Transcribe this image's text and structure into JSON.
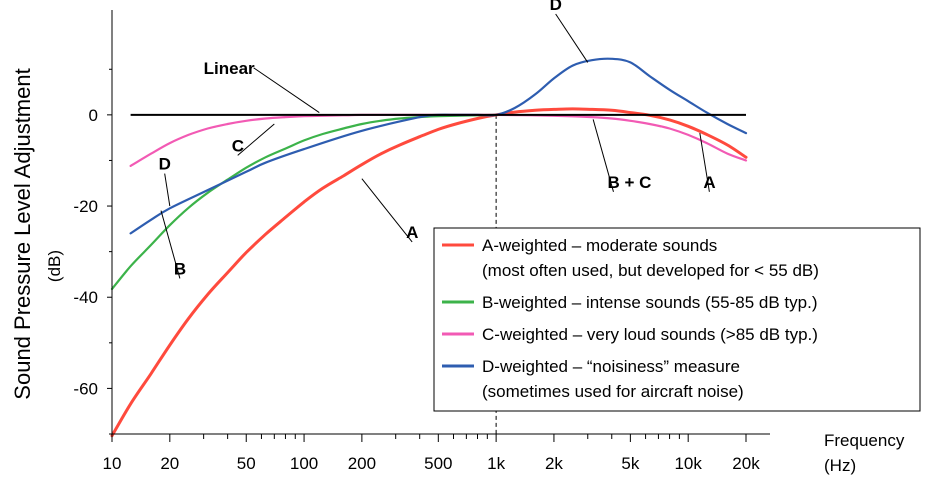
{
  "chart_data": {
    "type": "line",
    "xscale": "log",
    "xlim": [
      10,
      20000
    ],
    "ylim": [
      -70,
      23
    ],
    "ylabel": "Sound Pressure Level Adjustment",
    "yunit": "(dB)",
    "xlabel": "Frequency",
    "xunit": "(Hz)",
    "x_ticks": [
      {
        "value": 10,
        "label": "10"
      },
      {
        "value": 20,
        "label": "20"
      },
      {
        "value": 50,
        "label": "50"
      },
      {
        "value": 100,
        "label": "100"
      },
      {
        "value": 200,
        "label": "200"
      },
      {
        "value": 500,
        "label": "500"
      },
      {
        "value": 1000,
        "label": "1k"
      },
      {
        "value": 2000,
        "label": "2k"
      },
      {
        "value": 5000,
        "label": "5k"
      },
      {
        "value": 10000,
        "label": "10k"
      },
      {
        "value": 20000,
        "label": "20k"
      }
    ],
    "y_ticks": [
      {
        "value": 0,
        "label": "0"
      },
      {
        "value": -20,
        "label": "-20"
      },
      {
        "value": -40,
        "label": "-40"
      },
      {
        "value": -60,
        "label": "-60"
      }
    ],
    "reference_line_x": 1000,
    "legend_position": "bottom-right",
    "series": [
      {
        "name": "A-weighted",
        "color": "#ff4a3d",
        "x": [
          10,
          12.5,
          16,
          20,
          25,
          31.5,
          40,
          50,
          63,
          80,
          100,
          125,
          160,
          200,
          250,
          315,
          400,
          500,
          630,
          800,
          1000,
          1250,
          1600,
          2000,
          2500,
          3150,
          4000,
          5000,
          6300,
          8000,
          10000,
          12500,
          16000,
          20000
        ],
        "values": [
          -70.4,
          -63.4,
          -56.7,
          -50.5,
          -44.7,
          -39.4,
          -34.6,
          -30.2,
          -26.2,
          -22.5,
          -19.1,
          -16.1,
          -13.4,
          -10.9,
          -8.6,
          -6.6,
          -4.8,
          -3.2,
          -1.9,
          -0.8,
          0,
          0.6,
          1.0,
          1.2,
          1.3,
          1.2,
          1.0,
          0.5,
          -0.1,
          -1.1,
          -2.5,
          -4.3,
          -6.6,
          -9.3
        ]
      },
      {
        "name": "B-weighted",
        "color": "#3cb34a",
        "x": [
          10,
          12.5,
          16,
          20,
          25,
          31.5,
          40,
          50,
          63,
          80,
          100,
          125,
          160,
          200,
          250,
          315,
          400,
          500,
          1000
        ],
        "values": [
          -38.2,
          -33.2,
          -28.5,
          -24.2,
          -20.4,
          -17.1,
          -14.2,
          -11.6,
          -9.3,
          -7.4,
          -5.6,
          -4.2,
          -3.0,
          -2.0,
          -1.3,
          -0.8,
          -0.5,
          -0.3,
          0
        ]
      },
      {
        "name": "C-weighted",
        "color": "#f25ab4",
        "x": [
          12.5,
          16,
          20,
          25,
          31.5,
          40,
          50,
          63,
          80,
          100,
          125,
          160,
          200,
          250,
          315,
          400,
          500,
          1000,
          2000,
          3150,
          4000,
          5000,
          6300,
          8000,
          10000,
          12500,
          16000,
          20000
        ],
        "values": [
          -11.2,
          -8.5,
          -6.2,
          -4.4,
          -3.0,
          -2.0,
          -1.3,
          -0.8,
          -0.5,
          -0.3,
          -0.2,
          -0.1,
          0,
          0,
          0,
          0,
          0,
          0,
          -0.2,
          -0.5,
          -0.8,
          -1.3,
          -2.0,
          -3.0,
          -4.4,
          -6.2,
          -8.5,
          -10.0
        ]
      },
      {
        "name": "D-weighted",
        "color": "#2e5db0",
        "x": [
          12.5,
          16,
          20,
          31.5,
          50,
          63,
          100,
          200,
          400,
          500,
          630,
          800,
          1000,
          1250,
          1600,
          2000,
          2500,
          3150,
          4000,
          5000,
          6300,
          8000,
          10000,
          12500,
          16000,
          20000
        ],
        "values": [
          -26,
          -23,
          -20.5,
          -16.5,
          -12.5,
          -10.5,
          -7.5,
          -3.5,
          -0.5,
          0,
          0,
          0,
          0,
          1.5,
          4.5,
          8,
          10.8,
          12,
          12.3,
          11.5,
          8.5,
          5.5,
          3,
          0.5,
          -2,
          -4
        ]
      }
    ],
    "annotations": [
      {
        "text": "Linear",
        "x": 30,
        "y": 9
      },
      {
        "text": "C",
        "x": 42,
        "y": -8
      },
      {
        "text": "D",
        "x": 17.5,
        "y": -12
      },
      {
        "text": "B",
        "x": 21,
        "y": -35
      },
      {
        "text": "A",
        "x": 340,
        "y": -27
      },
      {
        "text": "D",
        "x": 1900,
        "y": 23
      },
      {
        "text": "B + C",
        "x": 3800,
        "y": -16
      },
      {
        "text": "A",
        "x": 12000,
        "y": -16
      }
    ],
    "linear": {
      "label": "Linear",
      "color": "#000000",
      "x": [
        12.5,
        20000
      ],
      "values": [
        0,
        0
      ]
    },
    "legend": [
      {
        "series": "A-weighted",
        "color": "#ff4a3d",
        "lines": [
          "A-weighted – moderate sounds",
          "(most often used, but developed for < 55 dB)"
        ]
      },
      {
        "series": "B-weighted",
        "color": "#3cb34a",
        "lines": [
          "B-weighted – intense sounds (55-85 dB typ.)"
        ]
      },
      {
        "series": "C-weighted",
        "color": "#f25ab4",
        "lines": [
          "C-weighted – very loud sounds (>85 dB typ.)"
        ]
      },
      {
        "series": "D-weighted",
        "color": "#2e5db0",
        "lines": [
          "D-weighted – “noisiness” measure",
          "(sometimes used for aircraft noise)"
        ]
      }
    ]
  }
}
